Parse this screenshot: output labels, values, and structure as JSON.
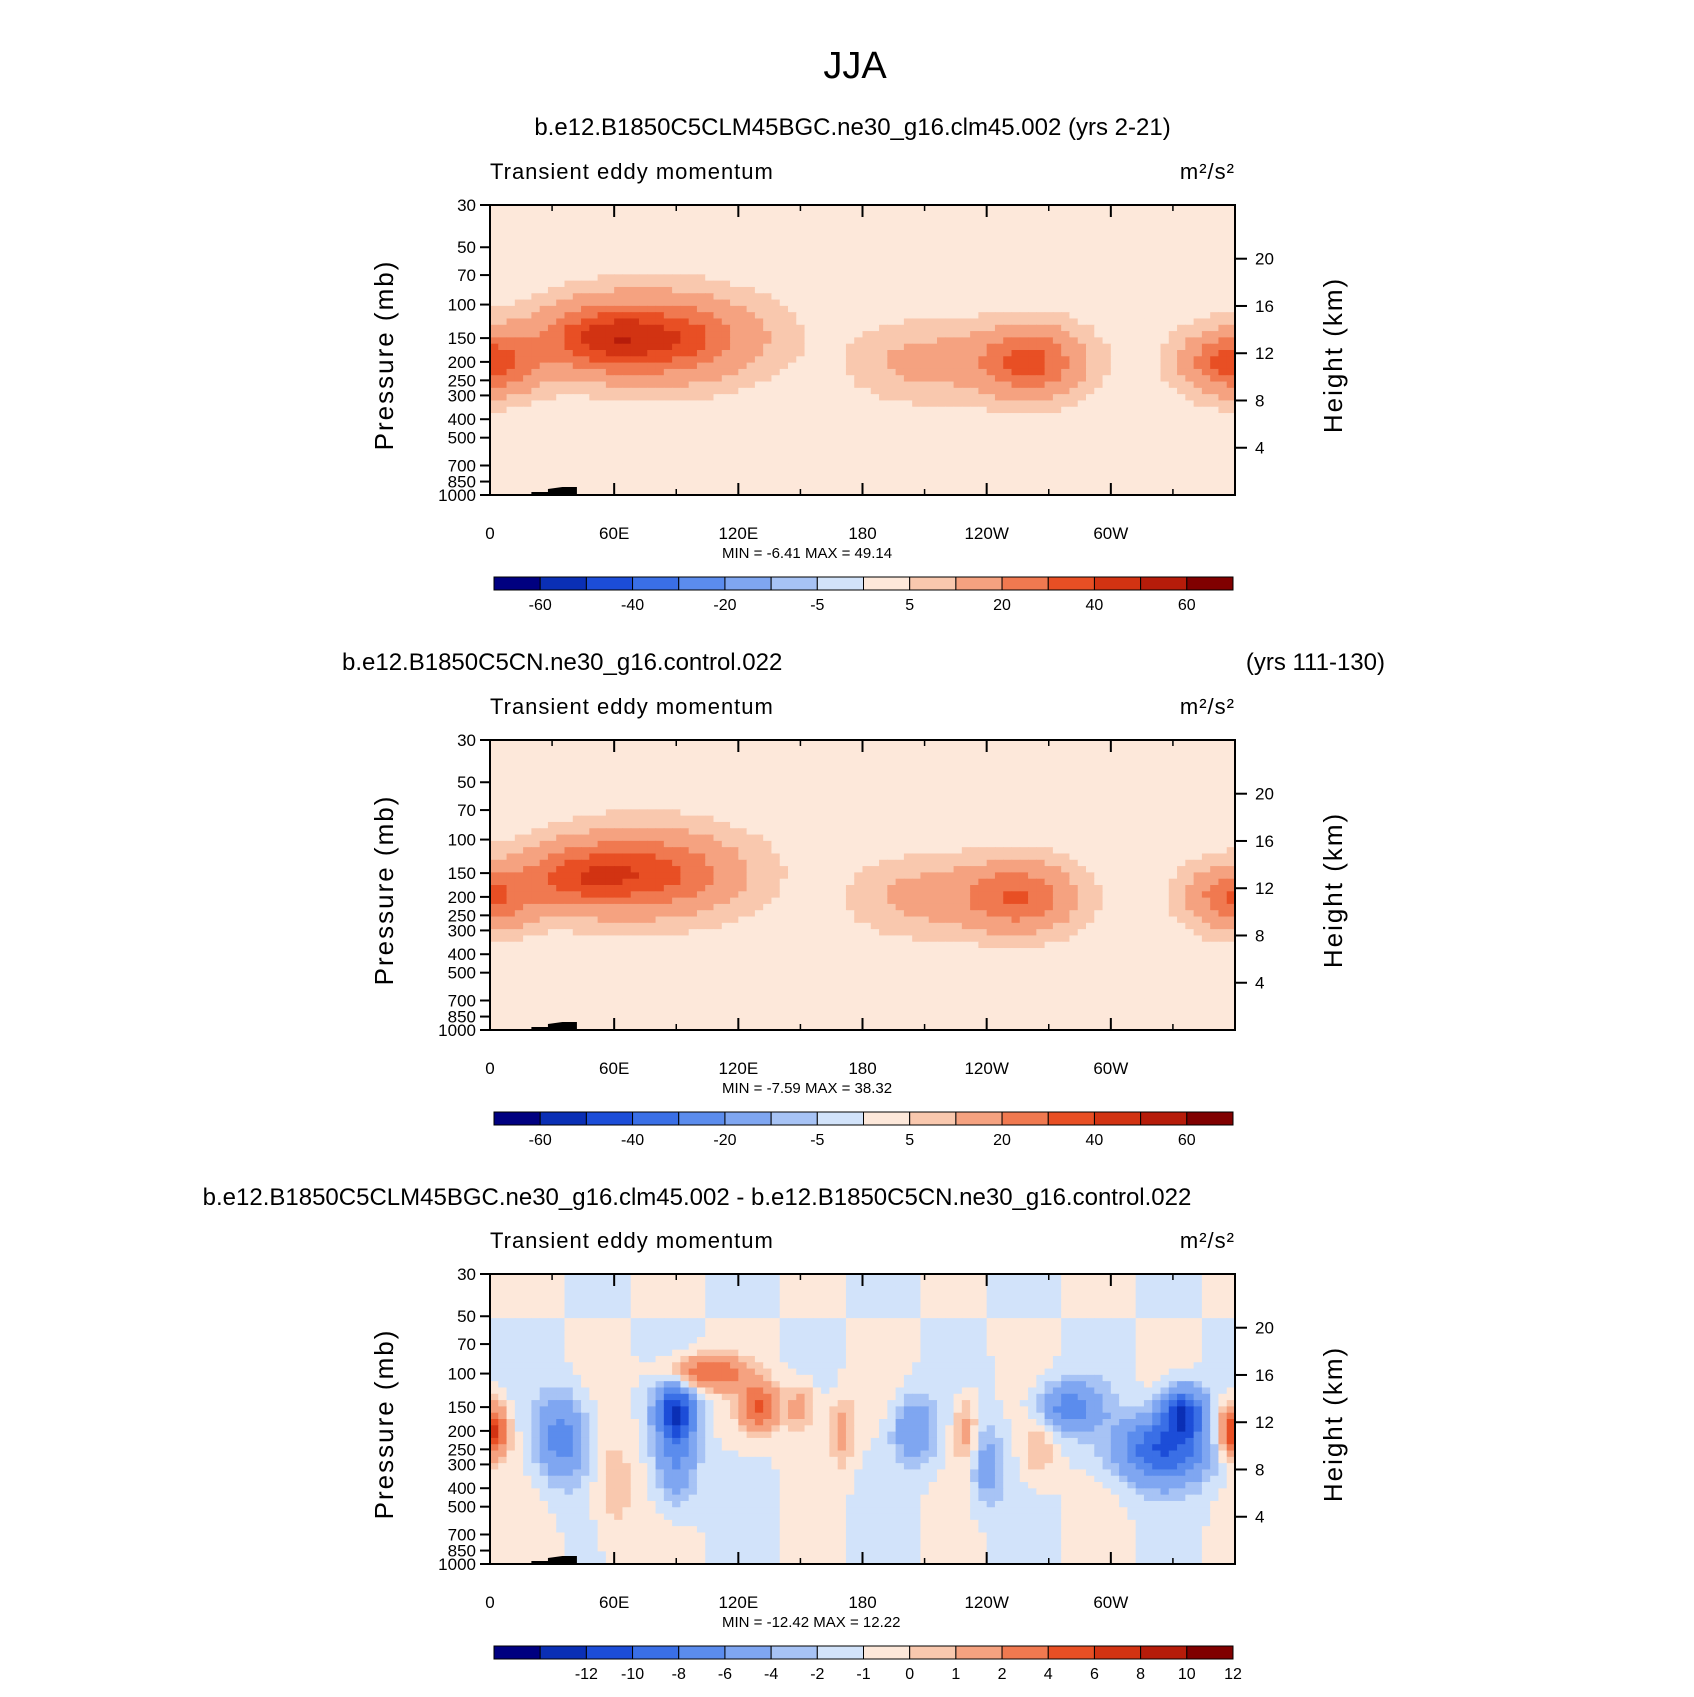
{
  "title": "JJA",
  "chart_data": [
    {
      "type": "heatmap",
      "run_label": "b.e12.B1850C5CLM45BGC.ne30_g16.clm45.002 (yrs 2-21)",
      "years_label": "",
      "variable": "Transient eddy momentum",
      "units": "m²/s²",
      "x_tick_labels": [
        "0",
        "60E",
        "120E",
        "180",
        "120W",
        "60W"
      ],
      "x_ticks_deg": [
        0,
        60,
        120,
        180,
        240,
        300
      ],
      "xlim": [
        0,
        360
      ],
      "ylabel": "Pressure (mb)",
      "y_ticks_mb": [
        30,
        50,
        70,
        100,
        150,
        200,
        250,
        300,
        400,
        500,
        700,
        850,
        1000
      ],
      "ylim_mb": [
        1000,
        30
      ],
      "right_label": "Height (km)",
      "height_ticks_km": [
        4,
        8,
        12,
        16,
        20
      ],
      "min_label": "MIN =",
      "min": "-6.41",
      "max_label": "MAX =",
      "max": "49.14",
      "colorbar_labels": [
        "-60",
        "-40",
        "-20",
        "-5",
        "5",
        "20",
        "40",
        "60"
      ],
      "colorbar_levels": [
        -70,
        -60,
        -50,
        -40,
        -30,
        -20,
        -10,
        -5,
        0,
        5,
        10,
        20,
        30,
        40,
        50,
        60,
        70
      ],
      "jets": [
        {
          "lon": 0,
          "p": 200,
          "amp": 34,
          "sx": 22,
          "sy": 0.35
        },
        {
          "lon": 360,
          "p": 200,
          "amp": 34,
          "sx": 22,
          "sy": 0.35
        },
        {
          "lon": 80,
          "p": 150,
          "amp": 38,
          "sx": 42,
          "sy": 0.45
        },
        {
          "lon": 50,
          "p": 150,
          "amp": 20,
          "sx": 25,
          "sy": 0.35
        },
        {
          "lon": 260,
          "p": 200,
          "amp": 32,
          "sx": 24,
          "sy": 0.38
        },
        {
          "lon": 210,
          "p": 200,
          "amp": 10,
          "sx": 30,
          "sy": 0.4
        }
      ]
    },
    {
      "type": "heatmap",
      "run_label": "b.e12.B1850C5CN.ne30_g16.control.022",
      "years_label": "(yrs 111-130)",
      "variable": "Transient eddy momentum",
      "units": "m²/s²",
      "x_tick_labels": [
        "0",
        "60E",
        "120E",
        "180",
        "120W",
        "60W"
      ],
      "x_ticks_deg": [
        0,
        60,
        120,
        180,
        240,
        300
      ],
      "xlim": [
        0,
        360
      ],
      "ylabel": "Pressure (mb)",
      "y_ticks_mb": [
        30,
        50,
        70,
        100,
        150,
        200,
        250,
        300,
        400,
        500,
        700,
        850,
        1000
      ],
      "ylim_mb": [
        1000,
        30
      ],
      "right_label": "Height (km)",
      "height_ticks_km": [
        4,
        8,
        12,
        16,
        20
      ],
      "min_label": "MIN =",
      "min": "-7.59",
      "max_label": "MAX =",
      "max": "38.32",
      "colorbar_labels": [
        "-60",
        "-40",
        "-20",
        "-5",
        "5",
        "20",
        "40",
        "60"
      ],
      "colorbar_levels": [
        -70,
        -60,
        -50,
        -40,
        -30,
        -20,
        -10,
        -5,
        0,
        5,
        10,
        20,
        30,
        40,
        50,
        60,
        70
      ],
      "jets": [
        {
          "lon": 0,
          "p": 200,
          "amp": 28,
          "sx": 20,
          "sy": 0.35
        },
        {
          "lon": 360,
          "p": 200,
          "amp": 28,
          "sx": 20,
          "sy": 0.35
        },
        {
          "lon": 75,
          "p": 150,
          "amp": 33,
          "sx": 40,
          "sy": 0.45
        },
        {
          "lon": 40,
          "p": 160,
          "amp": 20,
          "sx": 25,
          "sy": 0.35
        },
        {
          "lon": 255,
          "p": 200,
          "amp": 28,
          "sx": 25,
          "sy": 0.38
        },
        {
          "lon": 210,
          "p": 200,
          "amp": 10,
          "sx": 30,
          "sy": 0.4
        }
      ]
    },
    {
      "type": "heatmap",
      "run_label": "b.e12.B1850C5CLM45BGC.ne30_g16.clm45.002 - b.e12.B1850C5CN.ne30_g16.control.022",
      "years_label": "",
      "variable": "Transient eddy momentum",
      "units": "m²/s²",
      "x_tick_labels": [
        "0",
        "60E",
        "120E",
        "180",
        "120W",
        "60W"
      ],
      "x_ticks_deg": [
        0,
        60,
        120,
        180,
        240,
        300
      ],
      "xlim": [
        0,
        360
      ],
      "ylabel": "Pressure (mb)",
      "y_ticks_mb": [
        30,
        50,
        70,
        100,
        150,
        200,
        250,
        300,
        400,
        500,
        700,
        850,
        1000
      ],
      "ylim_mb": [
        1000,
        30
      ],
      "right_label": "Height (km)",
      "height_ticks_km": [
        4,
        8,
        12,
        16,
        20
      ],
      "min_label": "MIN =",
      "min": "-12.42",
      "max_label": "MAX =",
      "max": "12.22",
      "colorbar_labels": [
        "-12",
        "-10",
        "-8",
        "-6",
        "-4",
        "-2",
        "-1",
        "0",
        "1",
        "2",
        "4",
        "6",
        "8",
        "10",
        "12"
      ],
      "colorbar_levels": [
        -14,
        -12,
        -10,
        -8,
        -6,
        -4,
        -2,
        -1,
        0,
        1,
        2,
        4,
        6,
        8,
        10,
        12,
        14
      ],
      "jets": [
        {
          "lon": 0,
          "p": 200,
          "amp": 9,
          "sx": 8,
          "sy": 0.3
        },
        {
          "lon": 360,
          "p": 200,
          "amp": 9,
          "sx": 8,
          "sy": 0.3
        },
        {
          "lon": 35,
          "p": 220,
          "amp": -5,
          "sx": 12,
          "sy": 0.5
        },
        {
          "lon": 90,
          "p": 160,
          "amp": -10,
          "sx": 9,
          "sy": 0.35
        },
        {
          "lon": 90,
          "p": 300,
          "amp": -4,
          "sx": 10,
          "sy": 0.5
        },
        {
          "lon": 105,
          "p": 100,
          "amp": 6,
          "sx": 18,
          "sy": 0.2
        },
        {
          "lon": 130,
          "p": 150,
          "amp": 6,
          "sx": 9,
          "sy": 0.3
        },
        {
          "lon": 150,
          "p": 150,
          "amp": 3,
          "sx": 8,
          "sy": 0.3
        },
        {
          "lon": 170,
          "p": 200,
          "amp": 3,
          "sx": 6,
          "sy": 0.4
        },
        {
          "lon": 205,
          "p": 200,
          "amp": -4,
          "sx": 10,
          "sy": 0.4
        },
        {
          "lon": 230,
          "p": 200,
          "amp": 3,
          "sx": 6,
          "sy": 0.4
        },
        {
          "lon": 280,
          "p": 150,
          "amp": -5,
          "sx": 15,
          "sy": 0.3
        },
        {
          "lon": 325,
          "p": 250,
          "amp": -8,
          "sx": 22,
          "sy": 0.4
        },
        {
          "lon": 335,
          "p": 160,
          "amp": -9,
          "sx": 10,
          "sy": 0.3
        },
        {
          "lon": 60,
          "p": 400,
          "amp": 2,
          "sx": 10,
          "sy": 0.6
        },
        {
          "lon": 240,
          "p": 300,
          "amp": -3,
          "sx": 8,
          "sy": 0.5
        },
        {
          "lon": 265,
          "p": 250,
          "amp": 2,
          "sx": 8,
          "sy": 0.4
        }
      ]
    }
  ],
  "colors": {
    "palette": [
      "#000080",
      "#0a2fb5",
      "#1c4dd8",
      "#3a6fe6",
      "#5b8ced",
      "#7fa6f1",
      "#a7c3f5",
      "#d2e3fa",
      "#fde8da",
      "#f9c8ae",
      "#f5a280",
      "#f07950",
      "#e84f24",
      "#d23312",
      "#b61c0a",
      "#800000"
    ],
    "land": "#000000"
  }
}
